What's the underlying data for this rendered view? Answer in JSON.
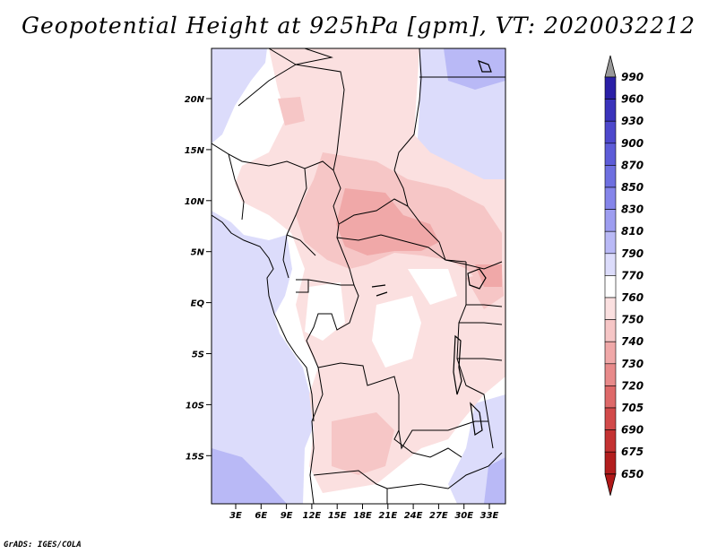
{
  "title": "Geopotential Height at 925hPa [gpm], VT: 2020032212",
  "footer": "GrADS: IGES/COLA",
  "map": {
    "lat_labels": [
      "20N",
      "15N",
      "10N",
      "5N",
      "EQ",
      "5S",
      "10S",
      "15S"
    ],
    "lon_labels": [
      "3E",
      "6E",
      "9E",
      "12E",
      "15E",
      "18E",
      "21E",
      "24E",
      "27E",
      "30E",
      "33E"
    ]
  },
  "colorbar": {
    "levels": [
      "990",
      "960",
      "930",
      "900",
      "870",
      "850",
      "830",
      "810",
      "790",
      "770",
      "760",
      "750",
      "740",
      "730",
      "720",
      "705",
      "690",
      "675",
      "650"
    ],
    "colors": [
      "#1a0f86",
      "#2a1fa6",
      "#3a33bb",
      "#4d48cc",
      "#5d5cd8",
      "#6e6fe0",
      "#8585ea",
      "#9d9df0",
      "#b9b9f6",
      "#dcdcfb",
      "#ffffff",
      "#fbe0e0",
      "#f6c6c6",
      "#f0a8a8",
      "#e88a8a",
      "#de6969",
      "#d24a4a",
      "#c43232",
      "#b21e1e",
      "#9e1212"
    ],
    "arrow_top_color": "#999999",
    "arrow_bottom_color": "#b01818"
  }
}
